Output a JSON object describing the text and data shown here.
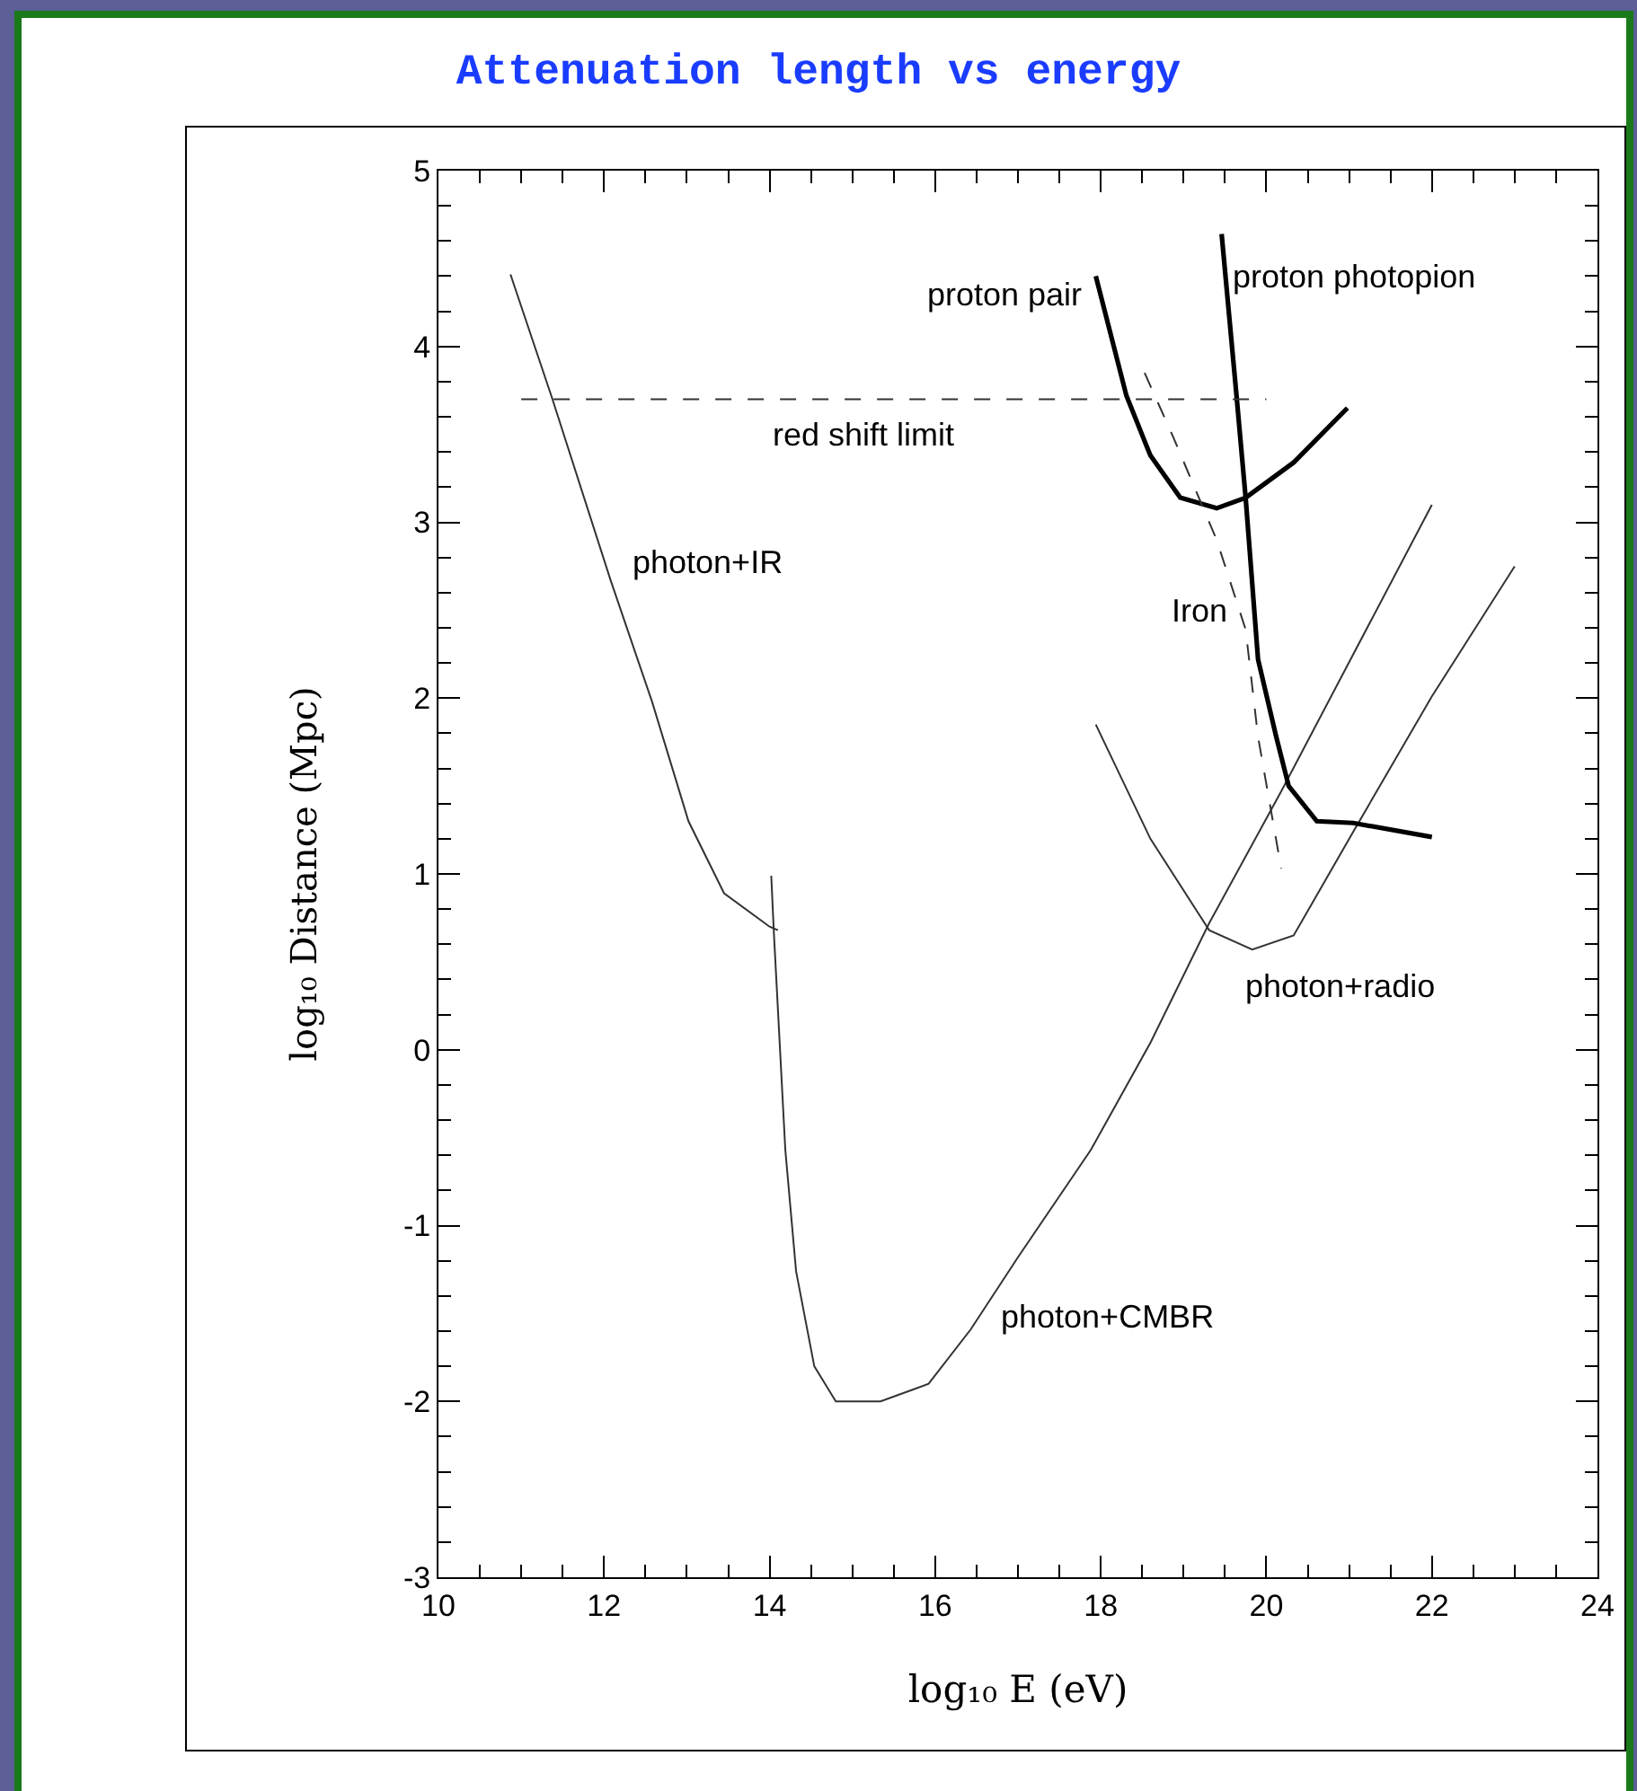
{
  "chart_data": {
    "type": "line",
    "title": "Attenuation length vs energy",
    "xlabel": "log₁₀ E (eV)",
    "ylabel": "log₁₀ Distance (Mpc)",
    "xlim": [
      10,
      24
    ],
    "xticks": [
      10,
      12,
      14,
      16,
      18,
      20,
      22,
      24
    ],
    "ylim": [
      -3,
      5
    ],
    "yticks": [
      -3,
      -2,
      -1,
      0,
      1,
      2,
      3,
      4,
      5
    ],
    "grid": false,
    "legend": false,
    "marker": "none",
    "series": [
      {
        "name": "photon+IR",
        "color": "#333333",
        "line_style": "solid",
        "x": [
          10.87,
          11.37,
          12.08,
          12.58,
          13.02,
          13.45,
          14.0,
          14.1
        ],
        "values": [
          4.41,
          3.71,
          2.67,
          1.98,
          1.3,
          0.89,
          0.7,
          0.68
        ]
      },
      {
        "name": "photon+CMBR",
        "color": "#333333",
        "line_style": "solid",
        "x": [
          14.02,
          14.05,
          14.19,
          14.32,
          14.54,
          14.8,
          15.34,
          15.92,
          16.43,
          17.0,
          17.88,
          18.6,
          19.31,
          20.18,
          22.0
        ],
        "values": [
          0.99,
          0.68,
          -0.57,
          -1.26,
          -1.8,
          -2.0,
          -2.0,
          -1.9,
          -1.59,
          -1.18,
          -0.57,
          0.04,
          0.72,
          1.47,
          3.1
        ]
      },
      {
        "name": "photon+radio",
        "color": "#333333",
        "line_style": "solid",
        "x": [
          17.94,
          18.6,
          19.31,
          19.83,
          20.33,
          21.05,
          22.0,
          23.0
        ],
        "values": [
          1.85,
          1.2,
          0.68,
          0.57,
          0.65,
          1.24,
          2.01,
          2.75
        ]
      },
      {
        "name": "proton pair",
        "color": "#000000",
        "line_style": "solid",
        "x": [
          17.94,
          18.31,
          18.6,
          18.96,
          19.4,
          19.75,
          20.33,
          20.98
        ],
        "values": [
          4.4,
          3.72,
          3.38,
          3.14,
          3.08,
          3.14,
          3.34,
          3.65
        ]
      },
      {
        "name": "proton photopion",
        "color": "#000000",
        "line_style": "solid",
        "x": [
          19.46,
          19.64,
          19.75,
          19.9,
          20.12,
          20.27,
          20.61,
          21.05,
          22.0
        ],
        "values": [
          4.64,
          3.72,
          3.14,
          2.22,
          1.78,
          1.5,
          1.3,
          1.29,
          1.21
        ]
      },
      {
        "name": "Iron",
        "color": "#333333",
        "line_style": "dashed",
        "x": [
          18.53,
          18.88,
          19.4,
          19.75,
          19.9,
          20.18
        ],
        "values": [
          3.85,
          3.48,
          2.9,
          2.39,
          1.78,
          1.03
        ]
      },
      {
        "name": "red shift limit",
        "color": "#333333",
        "line_style": "dashed",
        "x": [
          11.0,
          20.0
        ],
        "values": [
          3.7,
          3.7
        ]
      }
    ]
  }
}
